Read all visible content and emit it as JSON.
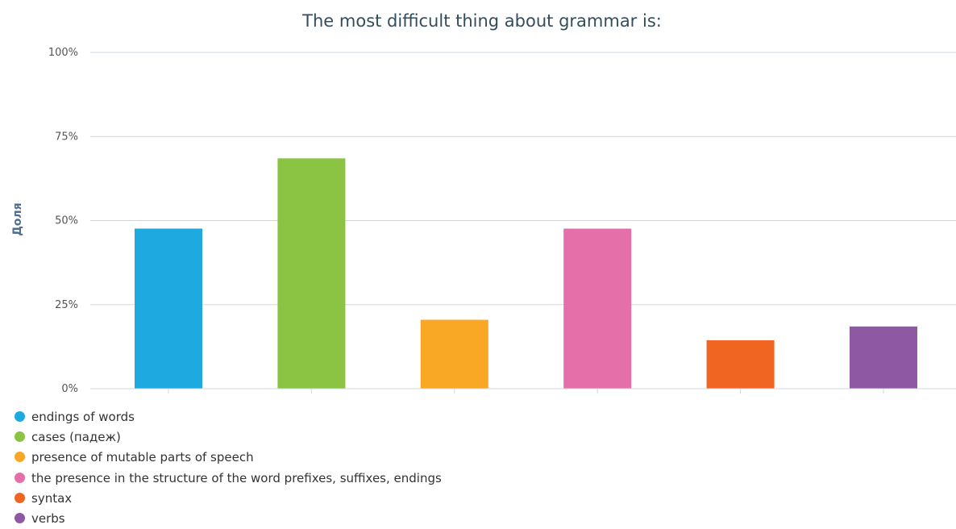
{
  "chart_data": {
    "type": "bar",
    "title": "The most difficult thing about grammar is:",
    "ylabel": "Доля",
    "xlabel": "",
    "ylim": [
      0,
      100
    ],
    "yticks": [
      "0%",
      "25%",
      "50%",
      "75%",
      "100%"
    ],
    "grid": true,
    "legend_position": "bottom-left",
    "categories": [
      "endings of words",
      "cases (падеж)",
      "presence of mutable parts of speech",
      "the presence in the structure of the word prefixes, suffixes, endings",
      "syntax",
      "verbs"
    ],
    "values": [
      47.6,
      68.5,
      20.5,
      47.6,
      14.4,
      18.5
    ],
    "colors": [
      "#1fa9e1",
      "#8bc443",
      "#f9a825",
      "#e56fa8",
      "#ef6521",
      "#8e58a3"
    ]
  }
}
